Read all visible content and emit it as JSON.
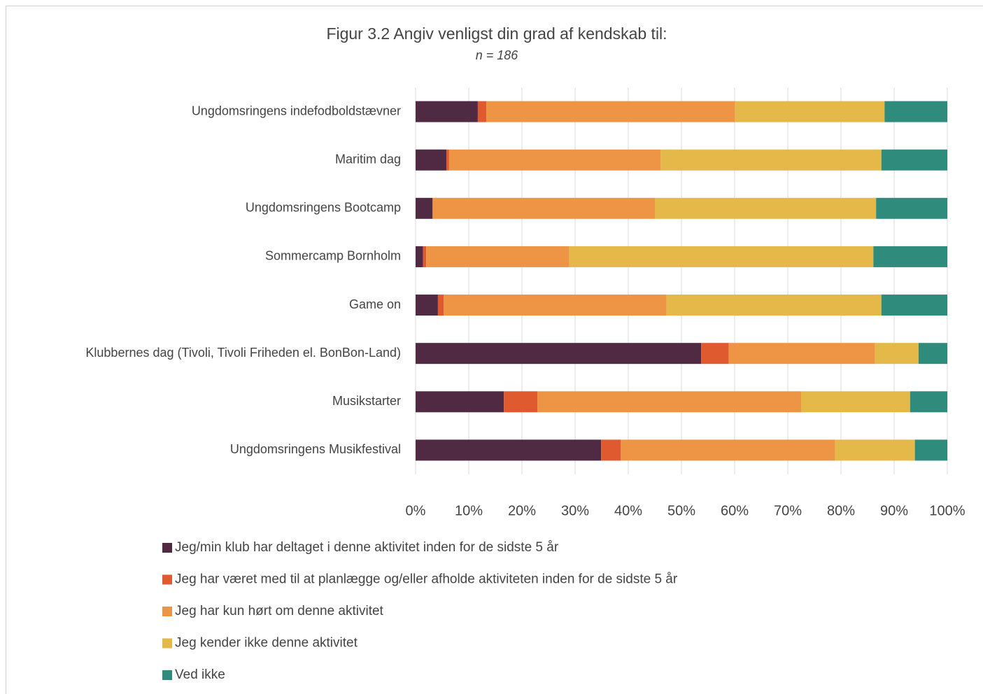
{
  "chart_data": {
    "type": "stacked-bar-horizontal",
    "title": "Figur 3.2 Angiv venligst din grad af kendskab til:",
    "subtitle": "n = 186",
    "categories": [
      "Ungdomsringens indefodboldstævner",
      "Maritim dag",
      "Ungdomsringens Bootcamp",
      "Sommercamp Bornholm",
      "Game on",
      "Klubbernes dag (Tivoli, Tivoli Friheden el. BonBon-Land)",
      "Musikstarter",
      "Ungdomsringens Musikfestival"
    ],
    "series": [
      {
        "name": "Jeg/min klub har deltaget i denne aktivitet inden for de sidste 5 år",
        "color": "#4f2a42",
        "values": [
          11.7,
          5.8,
          3.2,
          1.4,
          4.2,
          53.7,
          16.6,
          34.9
        ]
      },
      {
        "name": "Jeg har været med til at planlægge og/eller afholde aktiviteten inden for de sidste 5 år",
        "color": "#e05a30",
        "values": [
          1.6,
          0.5,
          0,
          0.6,
          1.1,
          5.2,
          6.3,
          3.7
        ]
      },
      {
        "name": "Jeg har kun hørt om denne aktivitet",
        "color": "#ee9445",
        "values": [
          46.8,
          39.8,
          41.8,
          26.9,
          41.9,
          27.5,
          49.6,
          40.3
        ]
      },
      {
        "name": "Jeg kender ikke denne aktivitet",
        "color": "#e5b84a",
        "values": [
          28.1,
          41.5,
          41.6,
          57.2,
          40.4,
          8.2,
          20.5,
          15.0
        ]
      },
      {
        "name": "Ved ikke",
        "color": "#2f8b7c",
        "values": [
          11.8,
          12.4,
          13.4,
          13.9,
          12.4,
          5.4,
          7.0,
          6.1
        ]
      }
    ],
    "xlim": [
      0,
      100
    ],
    "xticks": [
      {
        "value": 0,
        "label": "0%"
      },
      {
        "value": 10,
        "label": "10%"
      },
      {
        "value": 20,
        "label": "20%"
      },
      {
        "value": 30,
        "label": "30%"
      },
      {
        "value": 40,
        "label": "40%"
      },
      {
        "value": 50,
        "label": "50%"
      },
      {
        "value": 60,
        "label": "60%"
      },
      {
        "value": 70,
        "label": "70%"
      },
      {
        "value": 80,
        "label": "80%"
      },
      {
        "value": 90,
        "label": "90%"
      },
      {
        "value": 100,
        "label": "100%"
      }
    ],
    "grid": true
  }
}
